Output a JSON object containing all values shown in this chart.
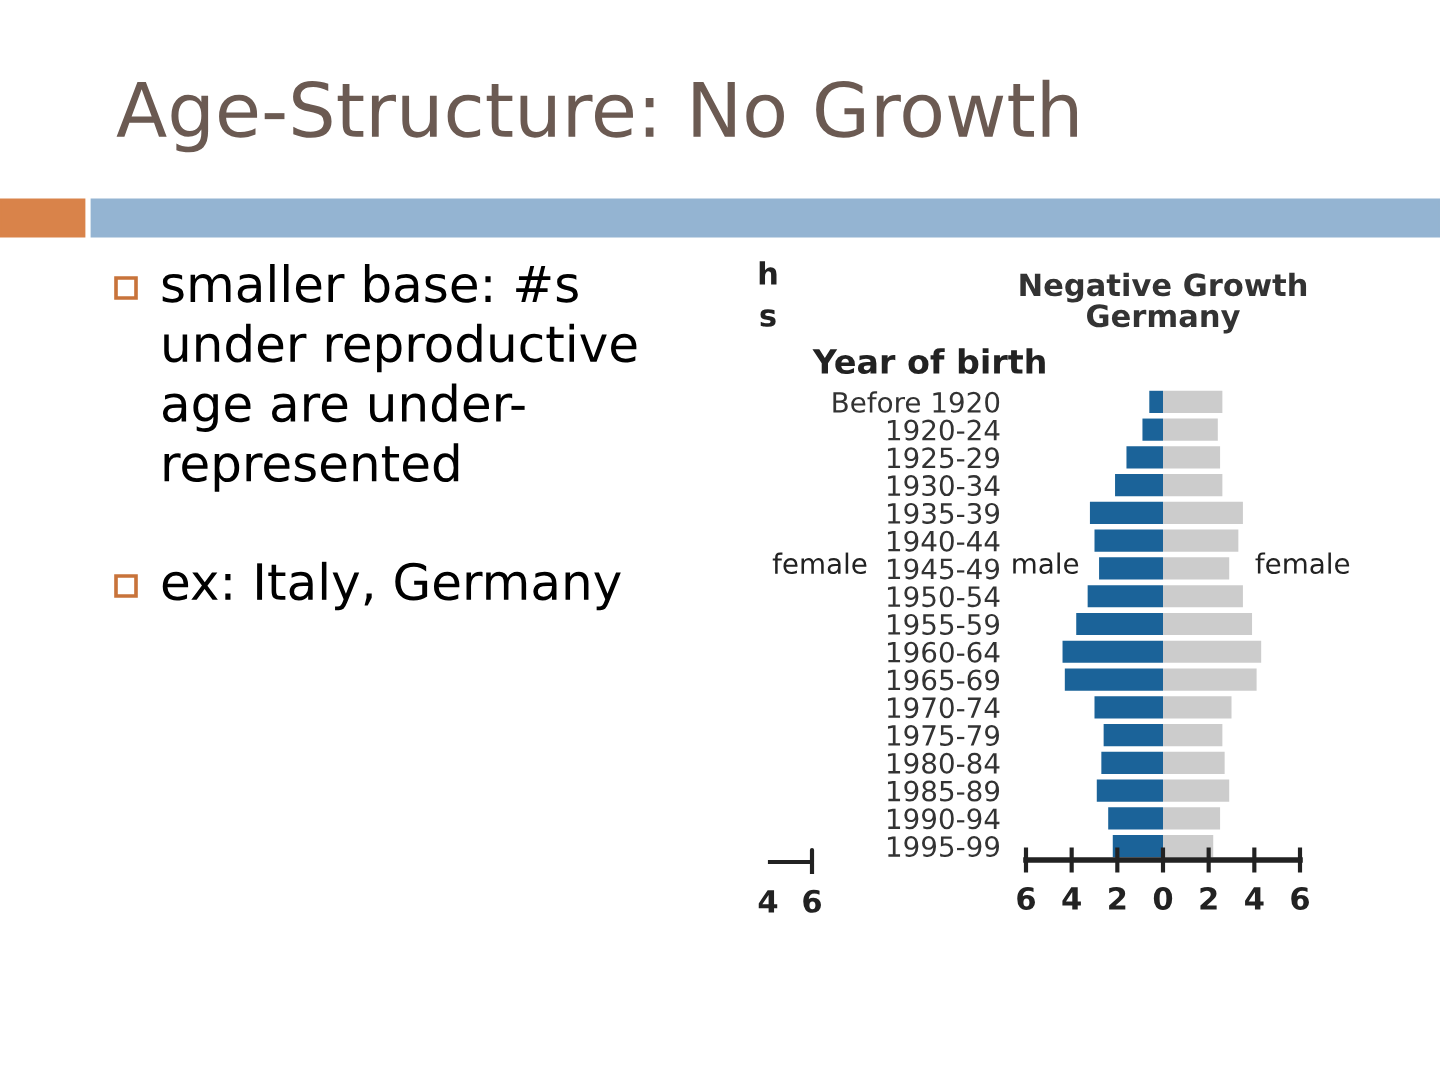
{
  "chart_data": {
    "type": "bar",
    "orientation": "horizontal",
    "stacked": true,
    "title": "Age-Structure: No Growth",
    "subtitle": "Negative Growth\nGermany",
    "ylabel": "Year of birth",
    "categories": [
      "Before 1920",
      "1920-24",
      "1925-29",
      "1930-34",
      "1935-39",
      "1940-44",
      "1945-49",
      "1950-54",
      "1955-59",
      "1960-64",
      "1965-69",
      "1970-74",
      "1975-79",
      "1980-84",
      "1985-89",
      "1990-94",
      "1995-99"
    ],
    "series": [
      {
        "name": "male",
        "color": "#1b6399",
        "values": [
          -0.6,
          -0.9,
          -1.6,
          -2.1,
          -3.2,
          -3.0,
          -2.8,
          -3.3,
          -3.8,
          -4.4,
          -4.3,
          -3.0,
          -2.6,
          -2.7,
          -2.9,
          -2.4,
          -2.2
        ]
      },
      {
        "name": "female",
        "color": "#cccccc",
        "values": [
          2.6,
          2.4,
          2.5,
          2.6,
          3.5,
          3.3,
          2.9,
          3.5,
          3.9,
          4.3,
          4.1,
          3.0,
          2.6,
          2.7,
          2.9,
          2.5,
          2.2
        ]
      }
    ],
    "xlim": [
      -6,
      6
    ],
    "xticks": [
      {
        "value": -6,
        "label": "6"
      },
      {
        "value": -4,
        "label": "4"
      },
      {
        "value": -2,
        "label": "2"
      },
      0,
      2,
      4,
      6
    ],
    "annotations": [
      "smaller base: #s\nunder reproductive\nage are under-\nrepresented",
      "ex: Italy, Germany",
      "h",
      "s",
      "female",
      "4",
      "6"
    ]
  }
}
